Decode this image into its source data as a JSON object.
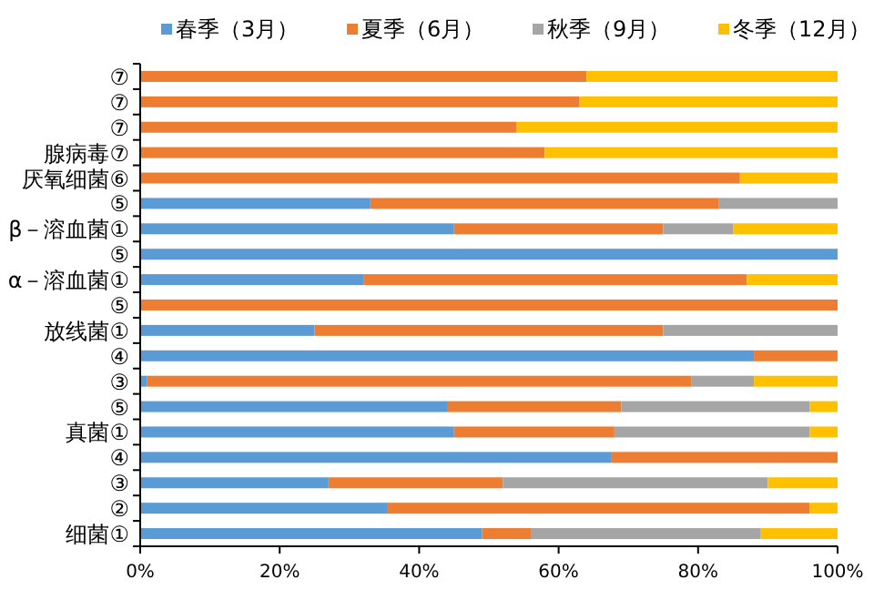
{
  "chart_data": {
    "type": "bar",
    "orientation": "horizontal",
    "stacked": true,
    "legend": "top",
    "grid": false,
    "categories": [
      "⑦",
      "⑦",
      "⑦",
      "腺病毒⑦",
      "厌氧细菌⑥",
      "⑤",
      "β－溶血菌①",
      "⑤",
      "α－溶血菌①",
      "⑤",
      "放线菌①",
      "④",
      "③",
      "⑤",
      "真菌①",
      "④",
      "③",
      "②",
      "细菌①"
    ],
    "xlim": [
      0,
      100
    ],
    "xticks": [
      {
        "value": 0,
        "label": "0%"
      },
      {
        "value": 20,
        "label": "20%"
      },
      {
        "value": 40,
        "label": "40%"
      },
      {
        "value": 60,
        "label": "60%"
      },
      {
        "value": 80,
        "label": "80%"
      },
      {
        "value": 100,
        "label": "100%"
      }
    ],
    "series": [
      {
        "name": "春季（3月）",
        "color": "#5b9bd5",
        "values": [
          0,
          0,
          0,
          0,
          0,
          33,
          45,
          100,
          32,
          0,
          25,
          88,
          1,
          44,
          45,
          67.5,
          27,
          35.5,
          49
        ]
      },
      {
        "name": "夏季（6月）",
        "color": "#ed7d31",
        "values": [
          64,
          63,
          54,
          58,
          86,
          50,
          30,
          0,
          55,
          100,
          50,
          12,
          78,
          25,
          23,
          32.5,
          25,
          60.5,
          7
        ]
      },
      {
        "name": "秋季（9月）",
        "color": "#a5a5a5",
        "values": [
          0,
          0,
          0,
          0,
          0,
          17,
          10,
          0,
          0,
          0,
          25,
          0,
          9,
          27,
          28,
          0,
          38,
          0,
          33
        ]
      },
      {
        "name": "冬季（12月）",
        "color": "#ffc000",
        "values": [
          36,
          37,
          46,
          42,
          14,
          0,
          15,
          0,
          13,
          0,
          0,
          0,
          12,
          4,
          4,
          0,
          10,
          4,
          11
        ]
      }
    ]
  }
}
